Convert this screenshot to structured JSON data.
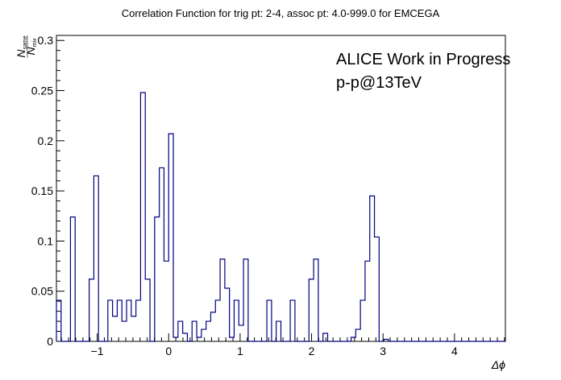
{
  "chart_data": {
    "type": "bar",
    "style": "step-histogram",
    "title": "Correlation Function for trig pt: 2-4, assoc pt: 4.0-999.0 for EMCEGA",
    "xlabel": "Δϕ",
    "ylabel_numerator": "N",
    "ylabel_numerator_sub": "same",
    "ylabel_denominator": "N",
    "ylabel_denominator_sub": "mix",
    "annotations": [
      "ALICE Work in Progress",
      "p-p@13TeV"
    ],
    "xlim": [
      -1.5708,
      4.7124
    ],
    "ylim": [
      0,
      0.305
    ],
    "xticks": [
      -1,
      0,
      1,
      2,
      3,
      4
    ],
    "xtick_labels": [
      "−1",
      "0",
      "1",
      "2",
      "3",
      "4"
    ],
    "yticks": [
      0,
      0.05,
      0.1,
      0.15,
      0.2,
      0.25,
      0.3
    ],
    "ytick_labels": [
      "0",
      "0.05",
      "0.1",
      "0.15",
      "0.2",
      "0.25",
      "0.3"
    ],
    "line_color": "#000080",
    "bin_width": 0.06545,
    "values": [
      0.041,
      0.0,
      0.0,
      0.124,
      0.0,
      0.0,
      0.0,
      0.062,
      0.165,
      0.0,
      0.0,
      0.041,
      0.025,
      0.041,
      0.02,
      0.041,
      0.025,
      0.041,
      0.248,
      0.062,
      0.0,
      0.124,
      0.173,
      0.08,
      0.207,
      0.004,
      0.02,
      0.008,
      0.0,
      0.02,
      0.004,
      0.012,
      0.02,
      0.029,
      0.041,
      0.082,
      0.053,
      0.004,
      0.041,
      0.016,
      0.082,
      0.0,
      0.0,
      0.0,
      0.0,
      0.041,
      0.0,
      0.02,
      0.0,
      0.0,
      0.041,
      0.0,
      0.0,
      0.0,
      0.062,
      0.082,
      0.0,
      0.008,
      0.0,
      0.0,
      0.0,
      0.0,
      0.0,
      0.004,
      0.012,
      0.041,
      0.08,
      0.145,
      0.104,
      0.0,
      0.002,
      0.0,
      0.0,
      0.0,
      0.0,
      0.0,
      0.0,
      0.0,
      0.0,
      0.0,
      0.0,
      0.0,
      0.0,
      0.0,
      0.0,
      0.0,
      0.0,
      0.0,
      0.0,
      0.0,
      0.0,
      0.0,
      0.0,
      0.0,
      0.0,
      0.0
    ],
    "grid": false
  }
}
